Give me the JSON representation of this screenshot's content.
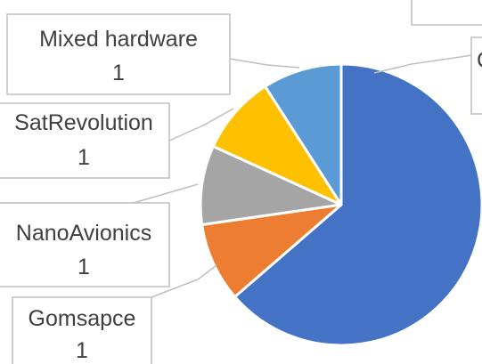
{
  "chart_data": {
    "type": "pie",
    "title": "",
    "slices": [
      {
        "label": "C",
        "value": 7,
        "value_label": "",
        "color": "#4472C4"
      },
      {
        "label": "Gomsapce",
        "value": 1,
        "value_label": "1",
        "color": "#ED7D31"
      },
      {
        "label": "NanoAvionics",
        "value": 1,
        "value_label": "1",
        "color": "#A5A5A5"
      },
      {
        "label": "SatRevolution",
        "value": 1,
        "value_label": "1",
        "color": "#FFC000"
      },
      {
        "label": "Mixed hardware",
        "value": 1,
        "value_label": "1",
        "color": "#5B9BD5"
      }
    ],
    "legend": "none",
    "data_labels": "callouts"
  }
}
